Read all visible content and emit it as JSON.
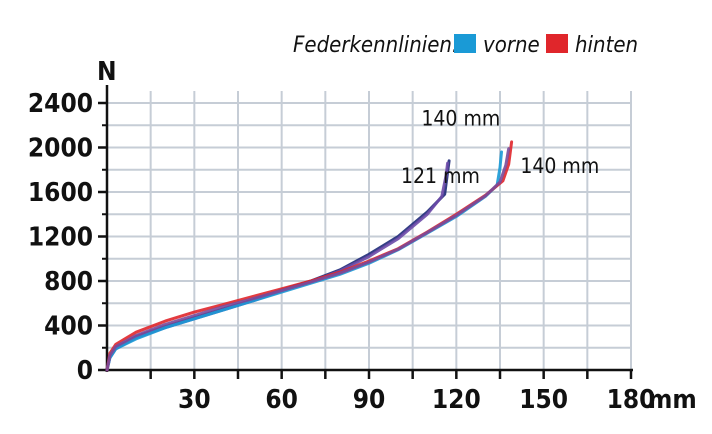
{
  "chart_data": {
    "type": "line",
    "title": "Federkennlinien:",
    "legend": [
      {
        "label": "vorne",
        "color": "#1a9ad6"
      },
      {
        "label": "hinten",
        "color": "#e0262b"
      }
    ],
    "xlabel": "mm",
    "ylabel": "N",
    "xlim": [
      0,
      180
    ],
    "ylim": [
      0,
      2400
    ],
    "x_ticks": [
      30,
      60,
      90,
      120,
      150,
      180
    ],
    "x_tick_labels": [
      "30",
      "60",
      "90",
      "120",
      "150",
      "180"
    ],
    "y_ticks": [
      0,
      400,
      800,
      1200,
      1600,
      2000,
      2400
    ],
    "y_tick_labels": [
      "0",
      "400",
      "800",
      "1200",
      "1600",
      "2000",
      "2400"
    ],
    "grid": true,
    "annotations": [
      {
        "text": "121 mm",
        "x": 101,
        "y": 1680
      },
      {
        "text": "140 mm",
        "x": 108,
        "y": 2200
      },
      {
        "text": "140 mm",
        "x": 142,
        "y": 1770
      }
    ],
    "series": [
      {
        "name": "121 mm (navy)",
        "color": "#1e2a78",
        "x": [
          0,
          1,
          3,
          10,
          20,
          30,
          40,
          50,
          60,
          70,
          80,
          90,
          100,
          110,
          116,
          117,
          117.5
        ],
        "y": [
          0,
          120,
          200,
          300,
          390,
          470,
          550,
          630,
          720,
          800,
          900,
          1040,
          1200,
          1420,
          1580,
          1780,
          1880
        ]
      },
      {
        "name": "121 mm (purple)",
        "color": "#6b4aa8",
        "x": [
          0,
          1,
          3,
          10,
          20,
          30,
          40,
          50,
          60,
          70,
          80,
          90,
          100,
          110,
          115,
          116.5,
          117
        ],
        "y": [
          0,
          110,
          190,
          290,
          380,
          460,
          540,
          620,
          710,
          790,
          890,
          1020,
          1180,
          1400,
          1560,
          1750,
          1860
        ]
      },
      {
        "name": "140 mm (vorne)",
        "color": "#1a9ad6",
        "x": [
          0,
          1,
          3,
          10,
          20,
          30,
          40,
          50,
          60,
          70,
          80,
          90,
          100,
          110,
          120,
          130,
          134,
          135,
          135.5
        ],
        "y": [
          0,
          110,
          190,
          280,
          380,
          460,
          540,
          620,
          700,
          780,
          860,
          960,
          1080,
          1230,
          1380,
          1560,
          1660,
          1820,
          1960
        ]
      },
      {
        "name": "140 mm (hinten)",
        "color": "#e0262b",
        "x": [
          0,
          1,
          3,
          10,
          20,
          30,
          40,
          50,
          60,
          70,
          80,
          90,
          100,
          110,
          120,
          130,
          136,
          138,
          139
        ],
        "y": [
          0,
          150,
          230,
          340,
          440,
          520,
          590,
          660,
          730,
          800,
          880,
          980,
          1090,
          1240,
          1400,
          1570,
          1700,
          1850,
          2050
        ]
      },
      {
        "name": "140 mm (purple)",
        "color": "#7a4a9a",
        "x": [
          0,
          1,
          3,
          10,
          20,
          30,
          40,
          50,
          60,
          70,
          80,
          90,
          100,
          110,
          120,
          130,
          135,
          137,
          138
        ],
        "y": [
          0,
          130,
          210,
          310,
          410,
          490,
          570,
          640,
          715,
          790,
          870,
          970,
          1085,
          1235,
          1390,
          1565,
          1690,
          1840,
          1990
        ]
      }
    ]
  }
}
